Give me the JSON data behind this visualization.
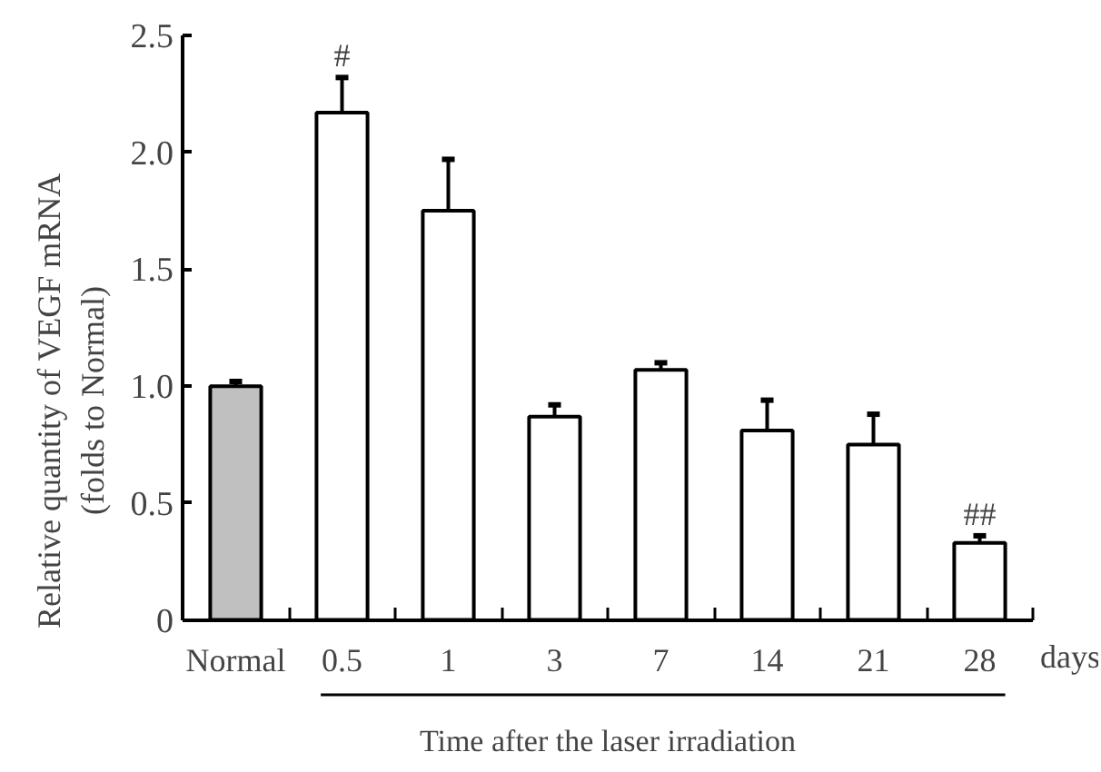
{
  "chart_data": {
    "type": "bar",
    "categories": [
      "Normal",
      "0.5",
      "1",
      "3",
      "7",
      "14",
      "21",
      "28"
    ],
    "values": [
      1.0,
      2.17,
      1.75,
      0.87,
      1.07,
      0.81,
      0.75,
      0.33
    ],
    "colors": [
      "#c0c0c0",
      "#ffffff",
      "#ffffff",
      "#ffffff",
      "#ffffff",
      "#ffffff",
      "#ffffff",
      "#ffffff"
    ],
    "errors": [
      [
        1.0,
        1.02
      ],
      [
        2.17,
        2.32
      ],
      [
        1.75,
        1.97
      ],
      [
        0.87,
        0.92
      ],
      [
        1.07,
        1.1
      ],
      [
        0.81,
        0.94
      ],
      [
        0.75,
        0.88
      ],
      [
        0.33,
        0.36
      ]
    ],
    "ylim": [
      0,
      2.5
    ],
    "yticks": [
      {
        "value": 0,
        "label": "0"
      },
      0.5,
      {
        "value": 1,
        "label": "1.0"
      },
      1.5,
      {
        "value": 2,
        "label": "2.0"
      },
      2.5
    ],
    "ylabel": "Relative quantity of VEGF mRNA\n(folds to Normal)",
    "xlabel": "Time after the laser irradiation",
    "annotations": [
      {
        "text": "#",
        "x": "0.5",
        "y": 2.32
      },
      {
        "text": "##",
        "x": "28",
        "y": 0.36
      },
      "days"
    ]
  }
}
